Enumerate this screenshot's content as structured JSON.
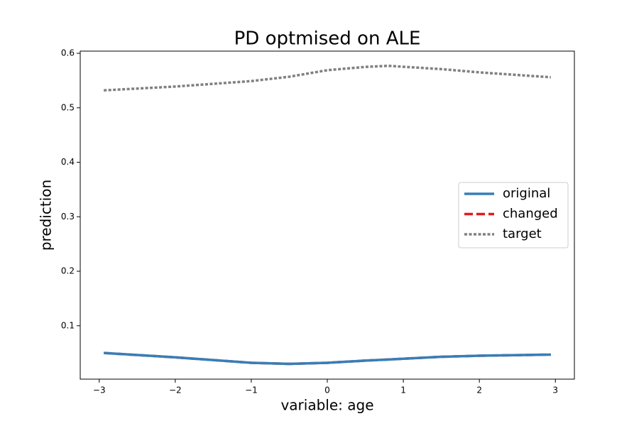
{
  "chart_data": {
    "type": "line",
    "title": "PD optmised on ALE",
    "xlabel": "variable: age",
    "ylabel": "prediction",
    "x": [
      -2.94,
      -2,
      -1,
      -0.5,
      0,
      0.5,
      0.8,
      1.5,
      2,
      2.94
    ],
    "series": [
      {
        "name": "original",
        "color": "#377eb8",
        "style": "solid",
        "values": [
          0.05,
          0.042,
          0.032,
          0.03,
          0.032,
          0.036,
          0.038,
          0.043,
          0.045,
          0.047
        ]
      },
      {
        "name": "changed",
        "color": "#e41a1c",
        "style": "dashed",
        "values": [
          0.05,
          0.042,
          0.032,
          0.03,
          0.032,
          0.036,
          0.038,
          0.043,
          0.045,
          0.047
        ]
      },
      {
        "name": "target",
        "color": "#808080",
        "style": "dotted",
        "values": [
          0.532,
          0.539,
          0.549,
          0.557,
          0.569,
          0.575,
          0.577,
          0.571,
          0.565,
          0.556
        ]
      }
    ],
    "xlim": [
      -3.25,
      3.25
    ],
    "ylim": [
      0.002,
      0.604
    ],
    "xticks": [
      {
        "value": -3,
        "label": "−3"
      },
      {
        "value": -2,
        "label": "−2"
      },
      {
        "value": -1,
        "label": "−1"
      },
      0,
      1,
      2,
      3
    ],
    "yticks": [
      0.1,
      0.2,
      0.3,
      0.4,
      0.5,
      0.6
    ],
    "grid": false,
    "legend": "right"
  }
}
